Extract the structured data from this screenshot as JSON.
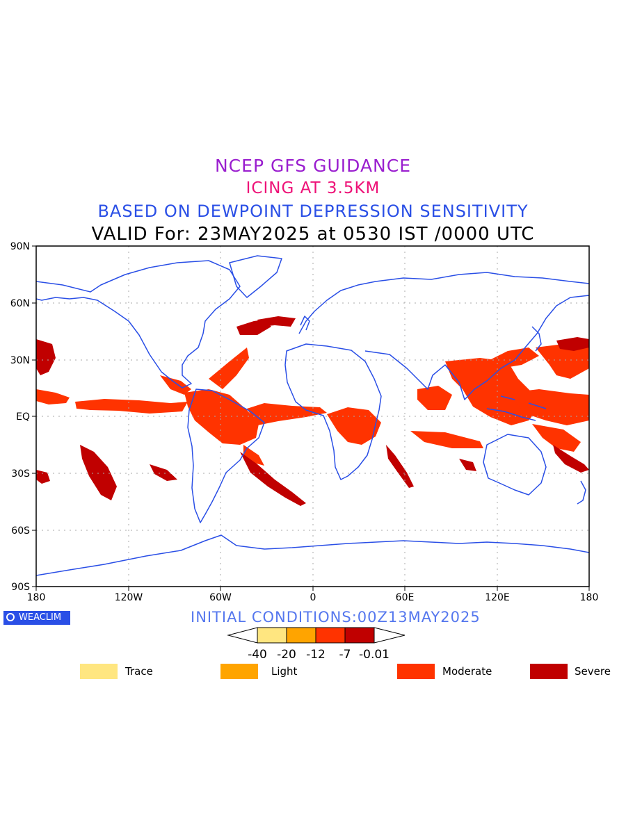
{
  "titles": {
    "line1": "NCEP GFS GUIDANCE",
    "line2": "ICING AT 3.5KM",
    "line3": "BASED ON DEWPOINT DEPRESSION SENSITIVITY",
    "line4": "VALID For: 23MAY2025 at 0530 IST /0000 UTC"
  },
  "axes": {
    "lat_labels": [
      "90N",
      "60N",
      "30N",
      "EQ",
      "30S",
      "60S",
      "90S"
    ],
    "lon_labels": [
      "180",
      "120W",
      "60W",
      "0",
      "60E",
      "120E",
      "180"
    ]
  },
  "logo": {
    "text": "WEACLIM",
    "icon": "copyright-circle-icon"
  },
  "initial_conditions": "INITIAL CONDITIONS:00Z13MAY2025",
  "colorbar": {
    "colors": [
      "#ffe680",
      "#ffa400",
      "#ff3300",
      "#c00000"
    ],
    "tick_labels": [
      "-40",
      "-20",
      "-12",
      "-7",
      "-0.01"
    ]
  },
  "legend": [
    {
      "label": "Trace",
      "color": "#ffe680"
    },
    {
      "label": "Light",
      "color": "#ffa400"
    },
    {
      "label": "Moderate",
      "color": "#ff3300"
    },
    {
      "label": "Severe",
      "color": "#c00000"
    }
  ],
  "colors": {
    "coastline": "#2a4fe6",
    "grid": "#aaaaaa"
  }
}
